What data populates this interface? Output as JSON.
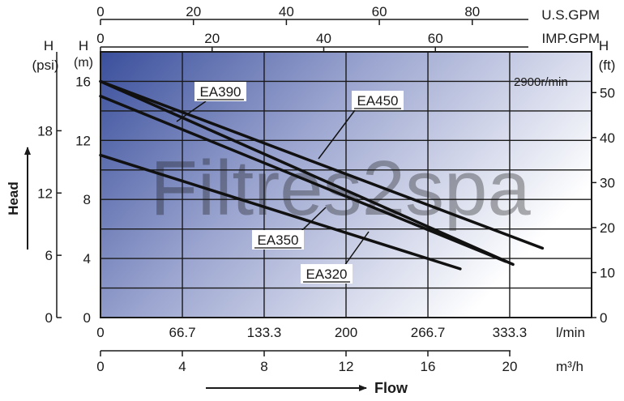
{
  "chart_data": {
    "type": "line",
    "speed_label": "2900r/min",
    "watermark": "Filtres2spa",
    "x_axis": {
      "unit": "l/min",
      "range": [
        0,
        400
      ],
      "ticks": [
        "0",
        "66.7",
        "133.3",
        "200",
        "266.7",
        "333.3"
      ],
      "tick_values": [
        0,
        66.7,
        133.3,
        200,
        266.7,
        333.3
      ]
    },
    "x_axis_m3h": {
      "unit": "m³/h",
      "range": [
        0,
        24
      ],
      "ticks": [
        "0",
        "4",
        "8",
        "12",
        "16",
        "20"
      ],
      "tick_values": [
        0,
        4,
        8,
        12,
        16,
        20
      ]
    },
    "x_axis_us_gpm": {
      "unit": "U.S.GPM",
      "ticks": [
        "0",
        "20",
        "40",
        "60",
        "80"
      ],
      "tick_values": [
        0,
        20,
        40,
        60,
        80
      ]
    },
    "x_axis_imp_gpm": {
      "unit": "IMP.GPM",
      "ticks": [
        "0",
        "20",
        "40",
        "60"
      ],
      "tick_values": [
        0,
        20,
        40,
        60
      ]
    },
    "y_axis_m": {
      "label_top": "H",
      "label_unit": "(m)",
      "range": [
        0,
        18
      ],
      "ticks": [
        "0",
        "4",
        "8",
        "12",
        "16"
      ],
      "tick_values": [
        0,
        4,
        8,
        12,
        16
      ]
    },
    "y_axis_psi": {
      "label_top": "H",
      "label_unit": "(psi)",
      "ticks": [
        "0",
        "6",
        "12",
        "18"
      ],
      "tick_values": [
        0,
        6,
        12,
        18
      ]
    },
    "y_axis_ft": {
      "label_top": "H",
      "label_unit": "(ft)",
      "ticks": [
        "0",
        "10",
        "20",
        "30",
        "40",
        "50"
      ],
      "tick_values": [
        0,
        10,
        20,
        30,
        40,
        50
      ]
    },
    "ylabel": "Head",
    "xlabel": "Flow",
    "grid": true,
    "series": [
      {
        "name": "EA390",
        "x": [
          0,
          336
        ],
        "y": [
          16.0,
          3.6
        ]
      },
      {
        "name": "EA450",
        "x": [
          0,
          360
        ],
        "y": [
          16.0,
          4.7
        ]
      },
      {
        "name": "EA350",
        "x": [
          0,
          330
        ],
        "y": [
          15.0,
          3.8
        ]
      },
      {
        "name": "EA320",
        "x": [
          0,
          293
        ],
        "y": [
          11.0,
          3.3
        ]
      }
    ]
  }
}
